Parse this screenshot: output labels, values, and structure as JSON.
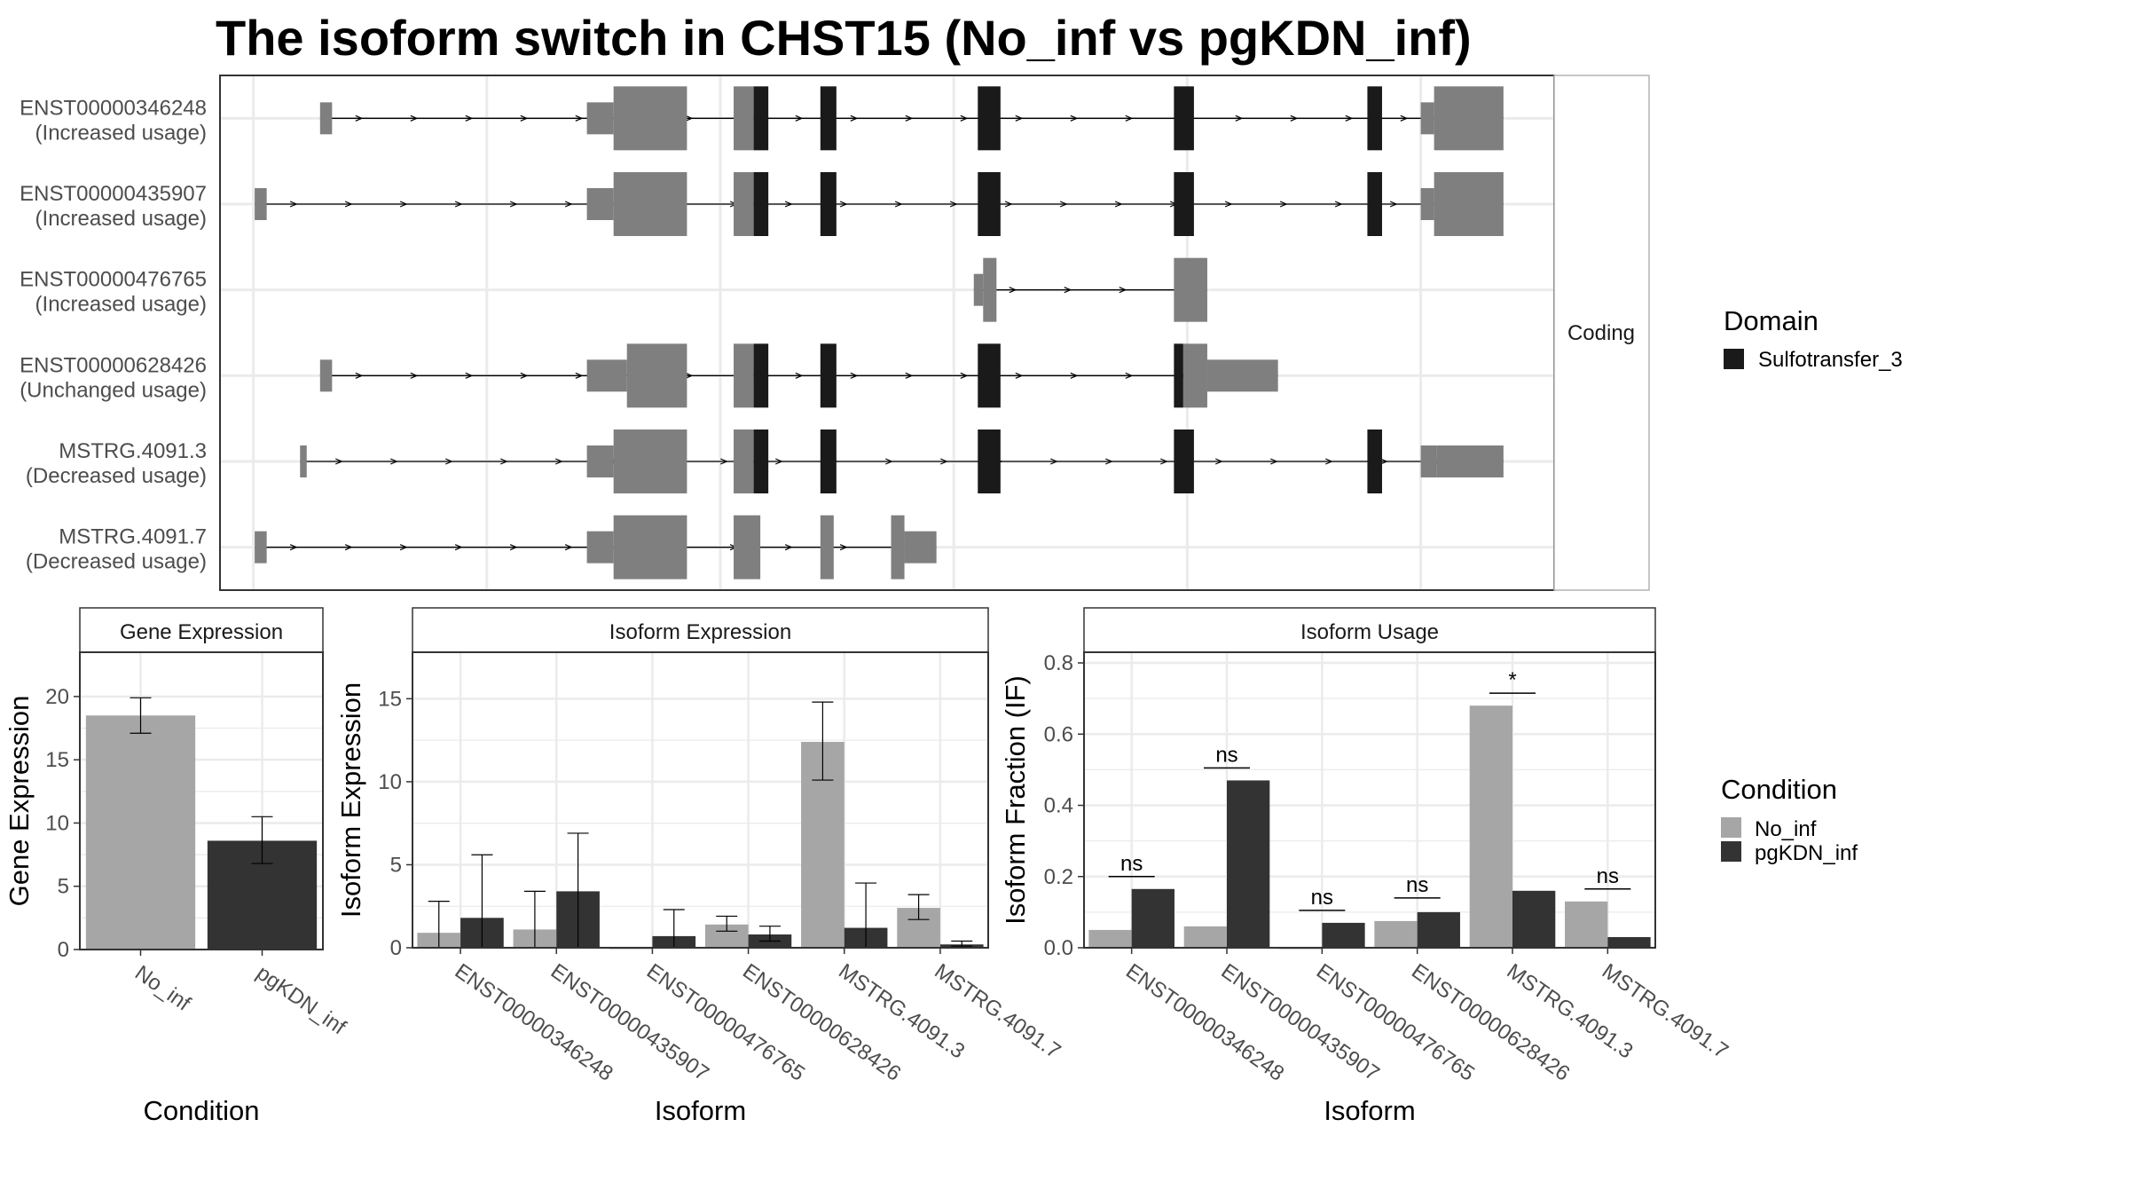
{
  "title": "The isoform switch in CHST15 (No_inf vs pgKDN_inf)",
  "colors": {
    "utr": "#7f7f7f",
    "domain": "#1a1a1a",
    "no_inf": "#a6a6a6",
    "pgkdn_inf": "#333333",
    "grid": "#ebebeb",
    "strip_bg": "#ffffff"
  },
  "chart_data": [
    {
      "type": "gene_structure",
      "facet_label": "Coding",
      "legend_title": "Domain",
      "legend_items": [
        {
          "label": "Sulfotransfer_3",
          "color": "#1a1a1a"
        }
      ],
      "tracks": [
        {
          "id": "ENST00000346248",
          "usage": "(Increased usage)",
          "exons": [
            [
              4.75,
              4.84,
              "t"
            ],
            [
              6.75,
              6.95,
              "m"
            ],
            [
              6.95,
              7.5,
              "f"
            ],
            [
              7.85,
              8,
              "f"
            ],
            [
              8,
              8.11,
              "d"
            ],
            [
              8.5,
              8.62,
              "d"
            ],
            [
              9.68,
              9.85,
              "d"
            ],
            [
              11.15,
              11.3,
              "d"
            ],
            [
              12.6,
              12.71,
              "d"
            ],
            [
              13,
              13.1,
              "m"
            ],
            [
              13.1,
              13.62,
              "f"
            ]
          ]
        },
        {
          "id": "ENST00000435907",
          "usage": "(Increased usage)",
          "exons": [
            [
              4.26,
              4.35,
              "t"
            ],
            [
              6.75,
              6.95,
              "m"
            ],
            [
              6.95,
              7.5,
              "f"
            ],
            [
              7.85,
              8,
              "f"
            ],
            [
              8,
              8.11,
              "d"
            ],
            [
              8.5,
              8.62,
              "d"
            ],
            [
              9.68,
              9.85,
              "d"
            ],
            [
              11.15,
              11.3,
              "d"
            ],
            [
              12.6,
              12.71,
              "d"
            ],
            [
              13,
              13.1,
              "m"
            ],
            [
              13.1,
              13.62,
              "f"
            ]
          ]
        },
        {
          "id": "ENST00000476765",
          "usage": "(Increased usage)",
          "exons": [
            [
              9.65,
              9.72,
              "m"
            ],
            [
              9.72,
              9.82,
              "f"
            ],
            [
              11.15,
              11.4,
              "f"
            ]
          ]
        },
        {
          "id": "ENST00000628426",
          "usage": "(Unchanged usage)",
          "exons": [
            [
              4.75,
              4.84,
              "t"
            ],
            [
              6.75,
              7.05,
              "m"
            ],
            [
              7.05,
              7.5,
              "f"
            ],
            [
              7.85,
              8,
              "f"
            ],
            [
              8,
              8.11,
              "d"
            ],
            [
              8.5,
              8.62,
              "d"
            ],
            [
              9.68,
              9.85,
              "d"
            ],
            [
              11.15,
              11.22,
              "d"
            ],
            [
              11.22,
              11.4,
              "f"
            ],
            [
              11.4,
              11.93,
              "m"
            ]
          ]
        },
        {
          "id": "MSTRG.4091.3",
          "usage": "(Decreased usage)",
          "exons": [
            [
              4.6,
              4.65,
              "t"
            ],
            [
              6.75,
              6.95,
              "m"
            ],
            [
              6.95,
              7.5,
              "f"
            ],
            [
              7.85,
              8,
              "f"
            ],
            [
              8,
              8.11,
              "d"
            ],
            [
              8.5,
              8.62,
              "d"
            ],
            [
              9.68,
              9.85,
              "d"
            ],
            [
              11.15,
              11.3,
              "d"
            ],
            [
              12.6,
              12.71,
              "d"
            ],
            [
              13,
              13.12,
              "m"
            ],
            [
              13.12,
              13.62,
              "m"
            ]
          ]
        },
        {
          "id": "MSTRG.4091.7",
          "usage": "(Decreased usage)",
          "exons": [
            [
              4.26,
              4.35,
              "t"
            ],
            [
              6.75,
              6.95,
              "m"
            ],
            [
              6.95,
              7.5,
              "f"
            ],
            [
              7.85,
              8.05,
              "f"
            ],
            [
              8.5,
              8.6,
              "f"
            ],
            [
              9.03,
              9.13,
              "f"
            ],
            [
              9.13,
              9.37,
              "m"
            ]
          ]
        }
      ]
    },
    {
      "type": "bar",
      "strip_title": "Gene Expression",
      "xlabel": "Condition",
      "ylabel": "Gene Expression",
      "ylim": [
        0,
        23.5
      ],
      "yticks": [
        0,
        5,
        10,
        15,
        20
      ],
      "categories": [
        "No_inf",
        "pgKDN_inf"
      ],
      "values": [
        18.5,
        8.6
      ],
      "errors": [
        [
          17.1,
          19.9
        ],
        [
          6.8,
          10.5
        ]
      ]
    },
    {
      "type": "bar",
      "strip_title": "Isoform Expression",
      "xlabel": "Isoform",
      "ylabel": "Isoform Expression",
      "ylim": [
        0,
        17.8
      ],
      "yticks": [
        0,
        5,
        10,
        15
      ],
      "categories": [
        "ENST00000346248",
        "ENST00000435907",
        "ENST00000476765",
        "ENST00000628426",
        "MSTRG.4091.3",
        "MSTRG.4091.7"
      ],
      "series": [
        {
          "name": "No_inf",
          "values": [
            0.9,
            1.1,
            0.0,
            1.4,
            12.4,
            2.4
          ],
          "errors": [
            [
              0,
              2.8
            ],
            [
              0,
              3.4
            ],
            [
              0,
              0
            ],
            [
              1.0,
              1.9
            ],
            [
              10.1,
              14.8
            ],
            [
              1.7,
              3.2
            ]
          ]
        },
        {
          "name": "pgKDN_inf",
          "values": [
            1.8,
            3.4,
            0.7,
            0.8,
            1.2,
            0.2
          ],
          "errors": [
            [
              0,
              5.6
            ],
            [
              0,
              6.9
            ],
            [
              0,
              2.3
            ],
            [
              0.4,
              1.3
            ],
            [
              0,
              3.9
            ],
            [
              0.1,
              0.4
            ]
          ]
        }
      ]
    },
    {
      "type": "bar",
      "strip_title": "Isoform Usage",
      "xlabel": "Isoform",
      "ylabel": "Isoform Fraction (IF)",
      "ylim": [
        0,
        0.83
      ],
      "yticks": [
        0.0,
        0.2,
        0.4,
        0.6,
        0.8
      ],
      "ytick_labels": [
        "0.0",
        "0.2",
        "0.4",
        "0.6",
        "0.8"
      ],
      "categories": [
        "ENST00000346248",
        "ENST00000435907",
        "ENST00000476765",
        "ENST00000628426",
        "MSTRG.4091.3",
        "MSTRG.4091.7"
      ],
      "series": [
        {
          "name": "No_inf",
          "values": [
            0.05,
            0.06,
            0.0,
            0.075,
            0.68,
            0.13
          ]
        },
        {
          "name": "pgKDN_inf",
          "values": [
            0.165,
            0.47,
            0.07,
            0.1,
            0.16,
            0.03
          ]
        }
      ],
      "significance": [
        {
          "label": "ns",
          "y": 0.2
        },
        {
          "label": "ns",
          "y": 0.505
        },
        {
          "label": "ns",
          "y": 0.105
        },
        {
          "label": "ns",
          "y": 0.14
        },
        {
          "label": "*",
          "y": 0.715
        },
        {
          "label": "ns",
          "y": 0.165
        }
      ]
    }
  ],
  "condition_legend": {
    "title": "Condition",
    "items": [
      {
        "label": "No_inf",
        "color": "#a6a6a6"
      },
      {
        "label": "pgKDN_inf",
        "color": "#333333"
      }
    ]
  }
}
